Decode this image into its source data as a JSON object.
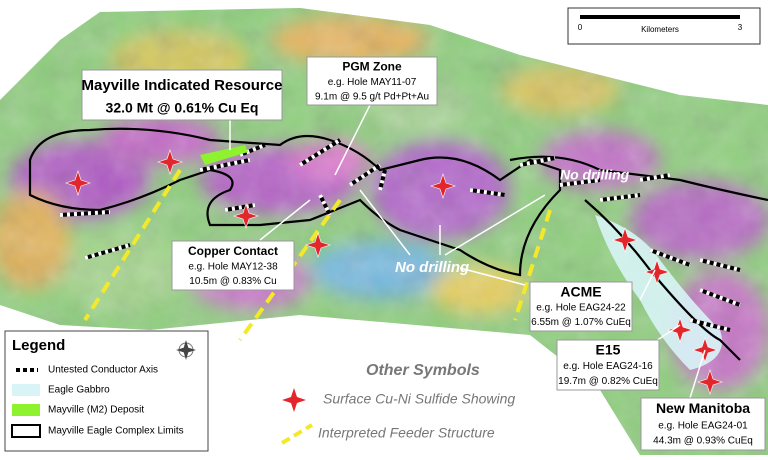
{
  "scale_bar": {
    "start": "0",
    "end": "3",
    "unit": "Kilometers"
  },
  "callouts": [
    {
      "title": "Mayville Indicated Resource",
      "lines": [
        "32.0 Mt @ 0.61% Cu Eq"
      ]
    },
    {
      "title": "PGM Zone",
      "lines": [
        "e.g. Hole MAY11-07",
        "9.1m @ 9.5 g/t Pd+Pt+Au"
      ]
    },
    {
      "title": "Copper Contact",
      "lines": [
        "e.g. Hole MAY12-38",
        "10.5m @ 0.83% Cu"
      ]
    },
    {
      "title": "ACME",
      "lines": [
        "e.g. Hole EAG24-22",
        "6.55m @ 1.07% CuEq"
      ]
    },
    {
      "title": "E15",
      "lines": [
        "e.g. Hole EAG24-16",
        "19.7m @ 0.82% CuEq"
      ]
    },
    {
      "title": "New Manitoba",
      "lines": [
        "e.g. Hole EAG24-01",
        "44.3m @ 0.93% CuEq"
      ]
    }
  ],
  "annotations": [
    "No drilling",
    "No drilling"
  ],
  "legend": {
    "title": "Legend",
    "items": [
      "Untested Conductor Axis",
      "Eagle Gabbro",
      "Mayville (M2) Deposit",
      "Mayville Eagle Complex Limits"
    ]
  },
  "other_symbols": {
    "title": "Other Symbols",
    "items": [
      "Surface Cu-Ni Sulfide Showing",
      "Interpreted Feeder Structure"
    ]
  }
}
